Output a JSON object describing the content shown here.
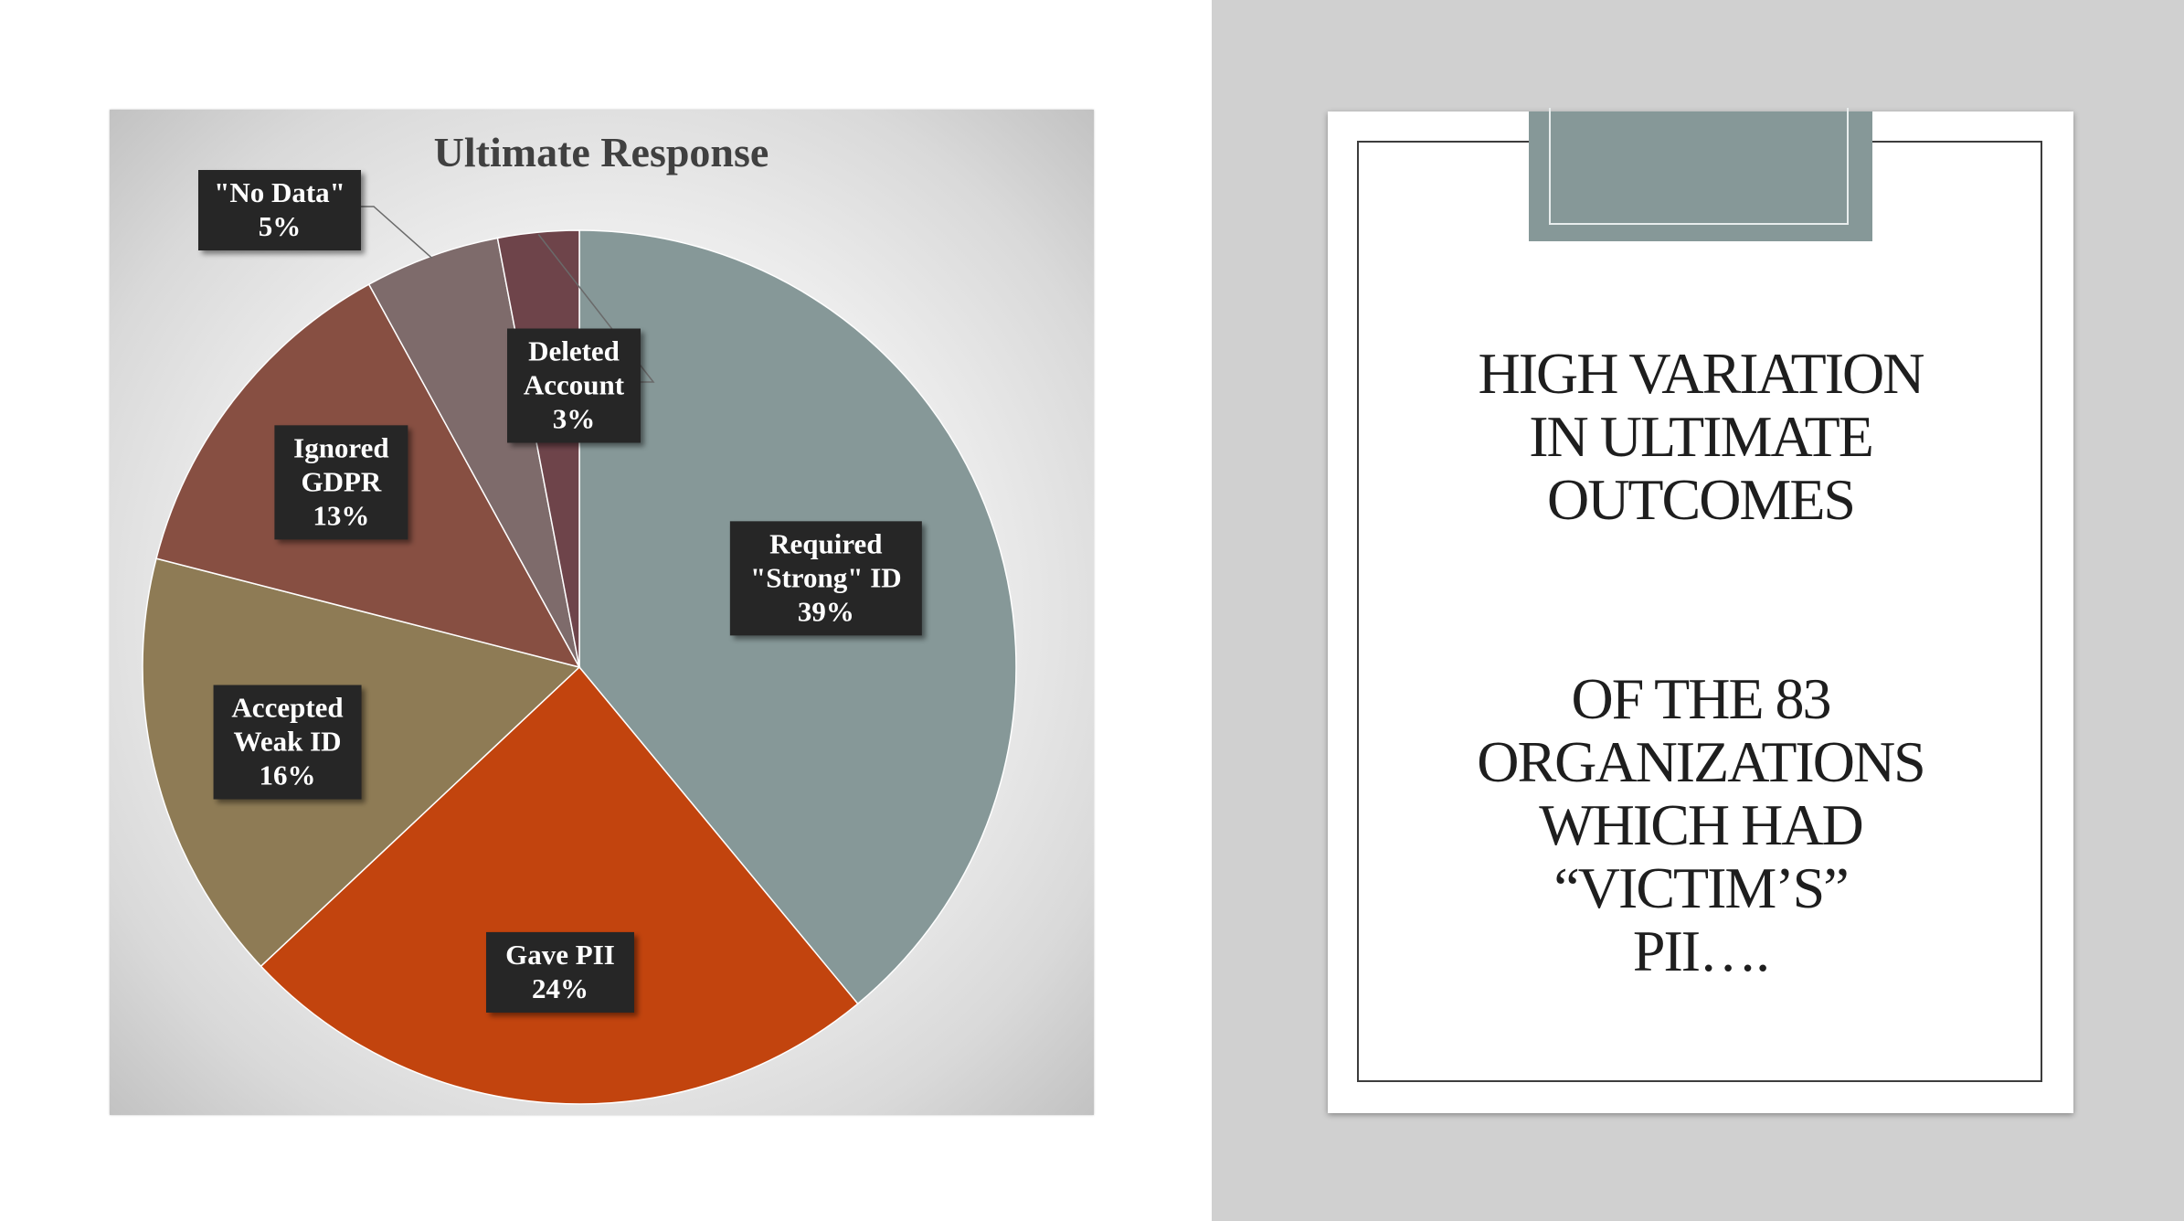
{
  "chart_data": {
    "type": "pie",
    "title": "Ultimate Response",
    "slices": [
      {
        "label_lines": [
          "Required",
          "\"Strong\" ID"
        ],
        "pct_text": "39%",
        "value": 39,
        "color": "#869898"
      },
      {
        "label_lines": [
          "Gave PII"
        ],
        "pct_text": "24%",
        "value": 24,
        "color": "#c2440e"
      },
      {
        "label_lines": [
          "Accepted",
          "Weak ID"
        ],
        "pct_text": "16%",
        "value": 16,
        "color": "#8e7b55"
      },
      {
        "label_lines": [
          "Ignored",
          "GDPR"
        ],
        "pct_text": "13%",
        "value": 13,
        "color": "#874f42"
      },
      {
        "label_lines": [
          "\"No Data\""
        ],
        "pct_text": "5%",
        "value": 5,
        "color": "#7e6b6b"
      },
      {
        "label_lines": [
          "Deleted",
          "Account"
        ],
        "pct_text": "3%",
        "value": 3,
        "color": "#6e444a"
      }
    ],
    "legend": "none"
  },
  "card": {
    "heading_lines": [
      "High variation",
      "in ultimate",
      "outcomes"
    ],
    "subheading_lines": [
      "Of the 83",
      "organizations",
      "which had",
      "“victim’s”",
      "PII…."
    ]
  },
  "colors": {
    "right_background": "#d0d0d0",
    "clip_accent": "#869898",
    "label_box": "#262626",
    "label_text": "#ffffff"
  }
}
